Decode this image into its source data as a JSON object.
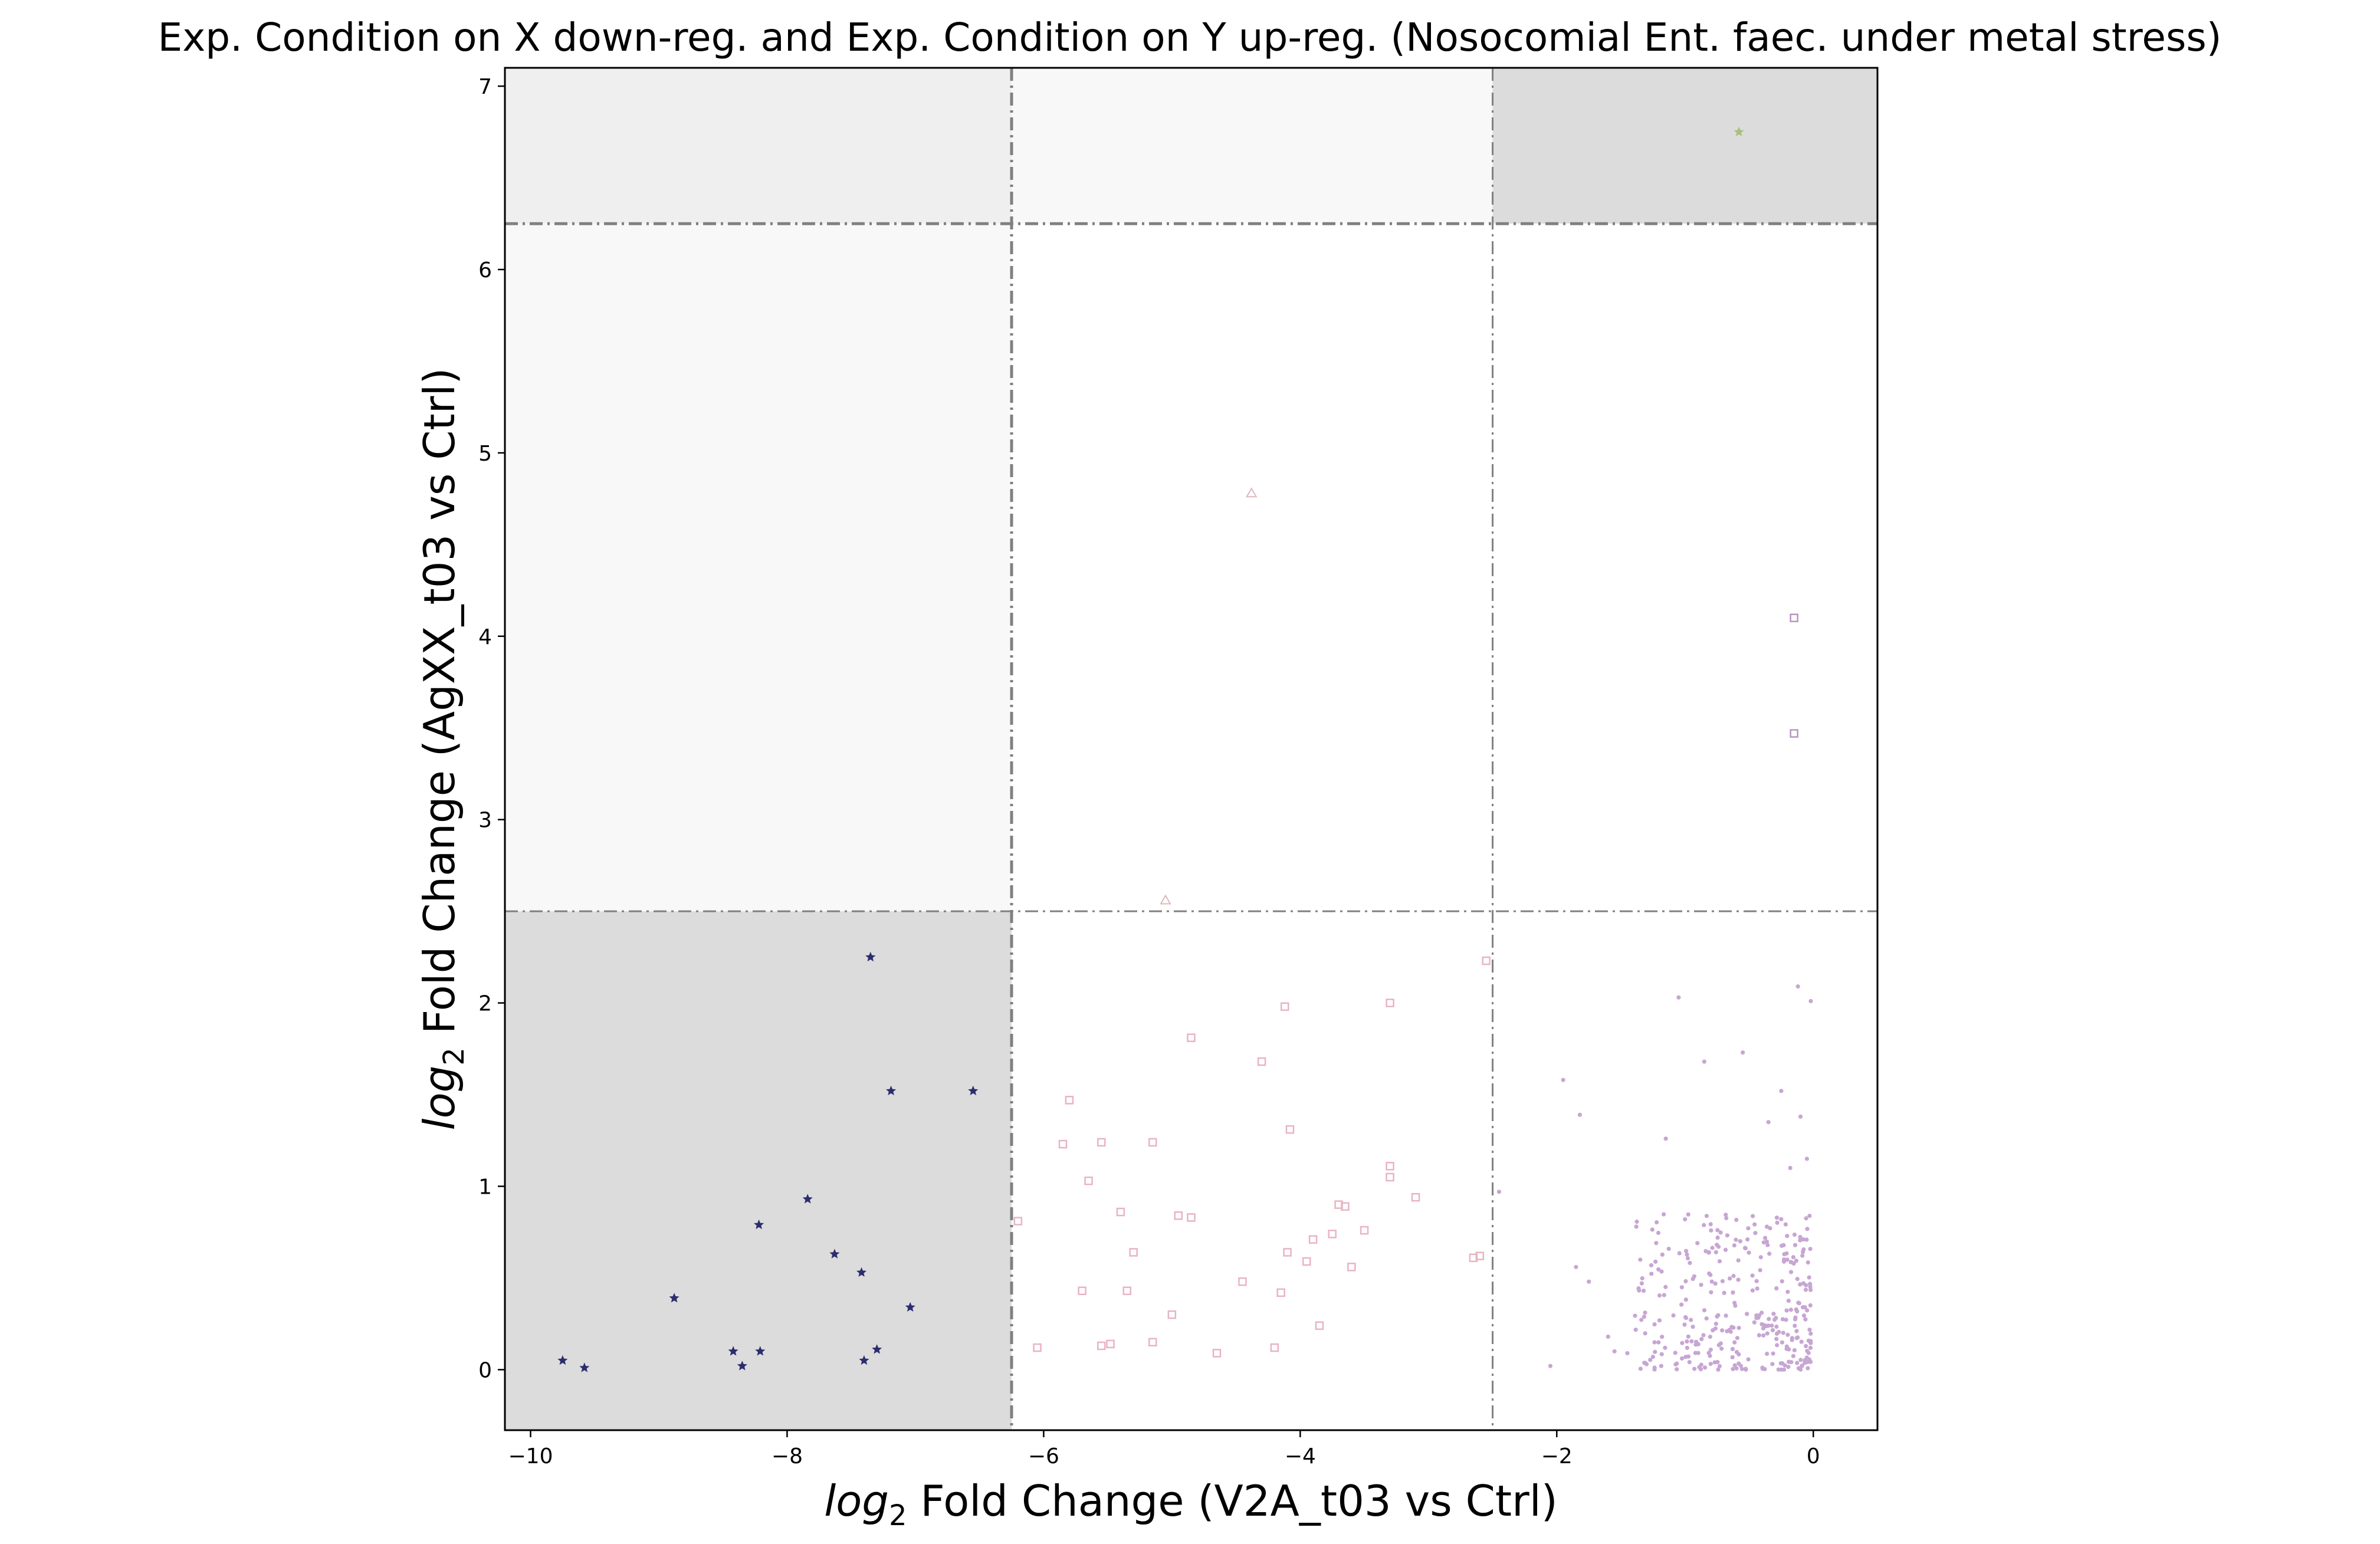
{
  "chart_data": {
    "type": "scatter",
    "title": "Exp. Condition on X down-reg. and Exp. Condition on Y up-reg. (Nosocomial Ent. faec. under metal stress)",
    "xlabel": {
      "italic": "log",
      "sub": "2",
      "rest": " Fold Change (V2A_t03 vs Ctrl)"
    },
    "ylabel": {
      "italic": "log",
      "sub": "2",
      "rest": " Fold Change (AgXX_t03 vs Ctrl)"
    },
    "xlim": [
      -10.2,
      0.5
    ],
    "ylim": [
      -0.33,
      7.1
    ],
    "xticks": [
      -10,
      -8,
      -6,
      -4,
      -2,
      0
    ],
    "xtick_labels": [
      "−10",
      "−8",
      "−6",
      "−4",
      "−2",
      "0"
    ],
    "yticks": [
      0,
      1,
      2,
      3,
      4,
      5,
      6,
      7
    ],
    "ytick_labels": [
      "0",
      "1",
      "2",
      "3",
      "4",
      "5",
      "6",
      "7"
    ],
    "grid": false,
    "legend": "none",
    "thresholds": {
      "x": [
        -6.25,
        -2.5
      ],
      "y": [
        2.5,
        6.25
      ]
    },
    "regions": [
      {
        "x": [
          -10.2,
          -6.25
        ],
        "y": [
          -0.33,
          2.5
        ],
        "color": "#dcdcdc"
      },
      {
        "x": [
          -2.5,
          0.5
        ],
        "y": [
          6.25,
          7.1
        ],
        "color": "#dcdcdc"
      },
      {
        "x": [
          -10.2,
          -6.25
        ],
        "y": [
          6.25,
          7.1
        ],
        "color": "#efefef"
      },
      {
        "x": [
          -10.2,
          -6.25
        ],
        "y": [
          2.5,
          6.25
        ],
        "color": "#f8f8f8"
      },
      {
        "x": [
          -6.25,
          -2.5
        ],
        "y": [
          6.25,
          7.1
        ],
        "color": "#f8f8f8"
      }
    ],
    "series": [
      {
        "marker": "star",
        "color": "#2b2d6e",
        "points": [
          [
            -9.75,
            0.05
          ],
          [
            -9.58,
            0.01
          ],
          [
            -8.88,
            0.39
          ],
          [
            -8.42,
            0.1
          ],
          [
            -8.35,
            0.02
          ],
          [
            -8.22,
            0.79
          ],
          [
            -8.21,
            0.1
          ],
          [
            -7.84,
            0.93
          ],
          [
            -7.63,
            0.63
          ],
          [
            -7.42,
            0.53
          ],
          [
            -7.4,
            0.05
          ],
          [
            -7.35,
            2.25
          ],
          [
            -7.3,
            0.11
          ],
          [
            -7.19,
            1.52
          ],
          [
            -7.04,
            0.34
          ],
          [
            -6.55,
            1.52
          ]
        ]
      },
      {
        "marker": "square",
        "color": "#e8b4c2",
        "points": [
          [
            -6.2,
            0.81
          ],
          [
            -6.05,
            0.12
          ],
          [
            -5.85,
            1.23
          ],
          [
            -5.8,
            1.47
          ],
          [
            -5.7,
            0.43
          ],
          [
            -5.65,
            1.03
          ],
          [
            -5.55,
            1.24
          ],
          [
            -5.55,
            0.13
          ],
          [
            -5.48,
            0.14
          ],
          [
            -5.4,
            0.86
          ],
          [
            -5.35,
            0.43
          ],
          [
            -5.3,
            0.64
          ],
          [
            -5.15,
            1.24
          ],
          [
            -5.15,
            0.15
          ],
          [
            -5.0,
            0.3
          ],
          [
            -4.95,
            0.84
          ],
          [
            -4.85,
            0.83
          ],
          [
            -4.85,
            1.81
          ],
          [
            -4.65,
            0.09
          ],
          [
            -4.45,
            0.48
          ],
          [
            -4.3,
            1.68
          ],
          [
            -4.2,
            0.12
          ],
          [
            -4.15,
            0.42
          ],
          [
            -4.12,
            1.98
          ],
          [
            -4.1,
            0.64
          ],
          [
            -4.08,
            1.31
          ],
          [
            -3.95,
            0.59
          ],
          [
            -3.9,
            0.71
          ],
          [
            -3.85,
            0.24
          ],
          [
            -3.75,
            0.74
          ],
          [
            -3.7,
            0.9
          ],
          [
            -3.65,
            0.89
          ],
          [
            -3.6,
            0.56
          ],
          [
            -3.5,
            0.76
          ],
          [
            -3.3,
            1.11
          ],
          [
            -3.3,
            1.05
          ],
          [
            -3.3,
            2.0
          ],
          [
            -3.1,
            0.94
          ],
          [
            -2.65,
            0.61
          ],
          [
            -2.6,
            0.62
          ],
          [
            -2.55,
            2.23
          ]
        ]
      },
      {
        "marker": "triangle",
        "color": "#e0b8bc",
        "points": [
          [
            -5.05,
            2.56
          ],
          [
            -4.38,
            4.78
          ]
        ]
      },
      {
        "marker": "square",
        "color": "#b795c4",
        "points": [
          [
            -0.15,
            4.1
          ],
          [
            -0.15,
            3.47
          ]
        ]
      },
      {
        "marker": "star",
        "color": "#a8c07a",
        "points": [
          [
            -0.58,
            6.75
          ]
        ]
      },
      {
        "marker": "dot",
        "color": "#c7a6d3",
        "points": [
          [
            -2.45,
            0.97
          ],
          [
            -2.05,
            0.02
          ],
          [
            -1.95,
            1.58
          ],
          [
            -1.85,
            0.56
          ],
          [
            -1.82,
            1.39
          ],
          [
            -1.75,
            0.48
          ],
          [
            -1.6,
            0.18
          ],
          [
            -1.55,
            0.1
          ],
          [
            -1.45,
            0.09
          ],
          [
            -1.38,
            0.78
          ],
          [
            -1.3,
            0.03
          ],
          [
            -1.25,
            0.07
          ],
          [
            -1.15,
            1.26
          ],
          [
            -1.05,
            2.03
          ],
          [
            -1.0,
            0.82
          ],
          [
            -0.85,
            1.68
          ],
          [
            -0.55,
            1.73
          ],
          [
            -0.35,
            1.35
          ],
          [
            -0.25,
            1.52
          ],
          [
            -0.18,
            1.1
          ],
          [
            -0.12,
            2.09
          ],
          [
            -0.1,
            1.38
          ],
          [
            -0.05,
            1.15
          ],
          [
            -0.02,
            2.01
          ]
        ]
      }
    ],
    "cloud": {
      "marker": "dot",
      "color": "#c7a6d3",
      "count": 330,
      "x_range": [
        -1.4,
        -0.02
      ],
      "y_range": [
        0.0,
        0.85
      ]
    }
  }
}
